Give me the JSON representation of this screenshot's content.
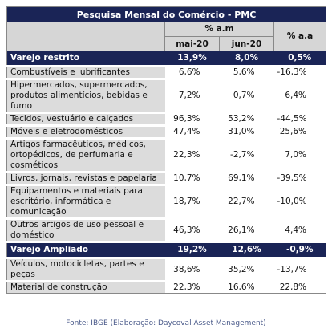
{
  "table": {
    "title": "Pesquisa Mensal do Comércio - PMC",
    "group_header": "% a.m",
    "annual_header": "% a.a",
    "month_headers": [
      "mai-20",
      "jun-20"
    ],
    "rows": [
      {
        "label": "Varejo restrito",
        "cells": [
          "13,9%",
          "8,0%",
          "0,5%"
        ],
        "highlight": true
      },
      {
        "label": "Combustíveis e lubrificantes",
        "cells": [
          "6,6%",
          "5,6%",
          "-16,3%"
        ],
        "highlight": false
      },
      {
        "label": "Hipermercados, supermercados, produtos alimentícios, bebidas e fumo",
        "cells": [
          "7,2%",
          "0,7%",
          "6,4%"
        ],
        "highlight": false
      },
      {
        "label": "Tecidos, vestuário e calçados",
        "cells": [
          "96,3%",
          "53,2%",
          "-44,5%"
        ],
        "highlight": false
      },
      {
        "label": "Móveis e eletrodomésticos",
        "cells": [
          "47,4%",
          "31,0%",
          "25,6%"
        ],
        "highlight": false
      },
      {
        "label": "Artigos farmacêuticos, médicos, ortopédicos, de perfumaria e cosméticos",
        "cells": [
          "22,3%",
          "-2,7%",
          "7,0%"
        ],
        "highlight": false
      },
      {
        "label": "Livros, jornais, revistas e papelaria",
        "cells": [
          "10,7%",
          "69,1%",
          "-39,5%"
        ],
        "highlight": false
      },
      {
        "label": "Equipamentos e materiais para escritório, informática e comunicação",
        "cells": [
          "18,7%",
          "22,7%",
          "-10,0%"
        ],
        "highlight": false
      },
      {
        "label": "Outros artigos de uso pessoal e doméstico",
        "cells": [
          "46,3%",
          "26,1%",
          "4,4%"
        ],
        "highlight": false
      },
      {
        "label": "Varejo Ampliado",
        "cells": [
          "19,2%",
          "12,6%",
          "-0,9%"
        ],
        "highlight": true
      },
      {
        "label": "Veículos, motocicletas, partes e peças",
        "cells": [
          "38,6%",
          "35,2%",
          "-13,7%"
        ],
        "highlight": false
      },
      {
        "label": "Material de construção",
        "cells": [
          "22,3%",
          "16,6%",
          "22,8%"
        ],
        "highlight": false
      }
    ]
  },
  "footer": {
    "source": "Fonte: IBGE (Elaboração: Daycoval Asset Management)"
  }
}
